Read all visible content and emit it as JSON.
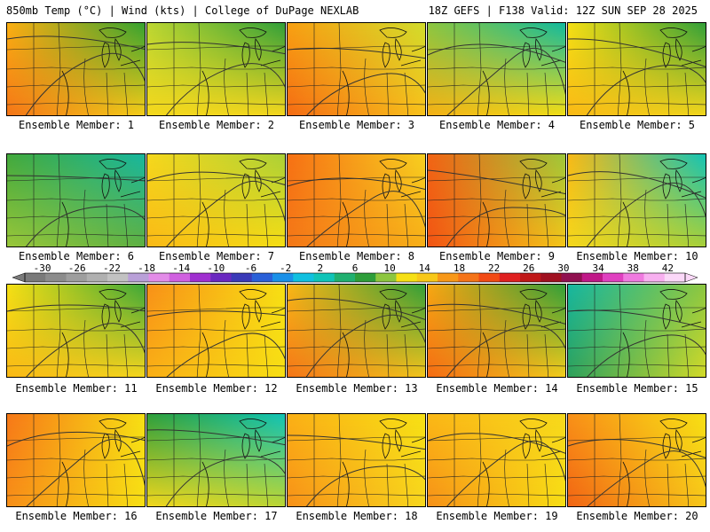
{
  "header": {
    "left": "850mb Temp (°C) | Wind (kts) | College of DuPage NEXLAB",
    "right": "18Z GEFS | F138 Valid: 12Z SUN SEP 28 2025"
  },
  "members": [
    {
      "label": "Ensemble Member: 1",
      "ne": "#31a231",
      "nw": "#fcb012",
      "sw": "#f57418",
      "se": "#fad018"
    },
    {
      "label": "Ensemble Member: 2",
      "ne": "#2e9e3a",
      "nw": "#bcd632",
      "sw": "#f6d81c",
      "se": "#f8d81e"
    },
    {
      "label": "Ensemble Member: 3",
      "ne": "#d0dc2c",
      "nw": "#f8a012",
      "sw": "#f56a14",
      "se": "#fac21a"
    },
    {
      "label": "Ensemble Member: 4",
      "ne": "#0fb9a0",
      "nw": "#8dc63f",
      "sw": "#f7b015",
      "se": "#f6e014"
    },
    {
      "label": "Ensemble Member: 5",
      "ne": "#2e9e3a",
      "nw": "#f6e014",
      "sw": "#fab816",
      "se": "#f6d81c"
    },
    {
      "label": "Ensemble Member: 6",
      "ne": "#17b7a0",
      "nw": "#42a83c",
      "sw": "#9cc83a",
      "se": "#5fb040"
    },
    {
      "label": "Ensemble Member: 7",
      "ne": "#a9d038",
      "nw": "#f6d81c",
      "sw": "#fab816",
      "se": "#f8e014"
    },
    {
      "label": "Ensemble Member: 8",
      "ne": "#f6d020",
      "nw": "#f67014",
      "sw": "#f57818",
      "se": "#f8b018"
    },
    {
      "label": "Ensemble Member: 9",
      "ne": "#9cc83a",
      "nw": "#f26414",
      "sw": "#f25414",
      "se": "#f7c818"
    },
    {
      "label": "Ensemble Member: 10",
      "ne": "#10c4b8",
      "nw": "#f8b816",
      "sw": "#f6d81c",
      "se": "#a9d038"
    },
    {
      "label": "Ensemble Member: 11",
      "ne": "#3aa63a",
      "nw": "#f6e014",
      "sw": "#fab816",
      "se": "#f8d81e"
    },
    {
      "label": "Ensemble Member: 12",
      "ne": "#f6e014",
      "nw": "#f89018",
      "sw": "#fab016",
      "se": "#f8e014"
    },
    {
      "label": "Ensemble Member: 13",
      "ne": "#2e9e3a",
      "nw": "#fab816",
      "sw": "#f57418",
      "se": "#f6c81c"
    },
    {
      "label": "Ensemble Member: 14",
      "ne": "#2e9e3a",
      "nw": "#f8a812",
      "sw": "#f56a14",
      "se": "#f6d01c"
    },
    {
      "label": "Ensemble Member: 15",
      "ne": "#8dc63f",
      "nw": "#17b7a0",
      "sw": "#2ea05a",
      "se": "#d6dc28"
    },
    {
      "label": "Ensemble Member: 16",
      "ne": "#f6e014",
      "nw": "#f67818",
      "sw": "#f89018",
      "se": "#f8e014"
    },
    {
      "label": "Ensemble Member: 17",
      "ne": "#10c4b8",
      "nw": "#2e9e3a",
      "sw": "#f6d81c",
      "se": "#bcd632"
    },
    {
      "label": "Ensemble Member: 18",
      "ne": "#f6e014",
      "nw": "#fab016",
      "sw": "#f89018",
      "se": "#f8d81e"
    },
    {
      "label": "Ensemble Member: 19",
      "ne": "#f6d81c",
      "nw": "#fab816",
      "sw": "#f79018",
      "se": "#f8e014"
    },
    {
      "label": "Ensemble Member: 20",
      "ne": "#f6e014",
      "nw": "#f89018",
      "sw": "#f26414",
      "se": "#f8c81a"
    }
  ],
  "colorbar": {
    "min": -32,
    "max": 44,
    "ticks": [
      -30,
      -26,
      -22,
      -18,
      -14,
      -10,
      -6,
      -2,
      2,
      6,
      10,
      14,
      18,
      22,
      26,
      30,
      34,
      38,
      42
    ],
    "tick_labels": [
      "-30",
      "-26",
      "-22",
      "-18",
      "-14",
      "-10",
      "-6",
      "-2",
      "2",
      "6",
      "10",
      "14",
      "18",
      "22",
      "26",
      "30",
      "34",
      "38",
      "42"
    ],
    "colors": [
      "#7a7a7a",
      "#8c8c8c",
      "#9e9e9e",
      "#b0b0b0",
      "#c2c2c2",
      "#b9a0d8",
      "#e38ce8",
      "#d060e0",
      "#a030d0",
      "#6a28c0",
      "#3a3ab8",
      "#2a60d8",
      "#1a90e8",
      "#10c0e0",
      "#10c4b8",
      "#20b070",
      "#2e9e3a",
      "#8dc63f",
      "#f6e014",
      "#f8c818",
      "#f89818",
      "#f57418",
      "#f24a14",
      "#e02020",
      "#c01818",
      "#a01020",
      "#901050",
      "#c01888",
      "#e040c0",
      "#f07ae0",
      "#f8b0f0",
      "#fbd8f8"
    ]
  }
}
